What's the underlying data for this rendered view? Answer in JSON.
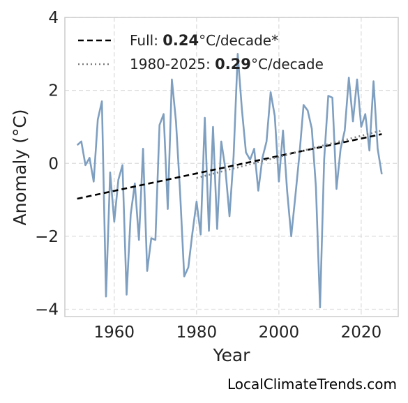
{
  "chart_data": {
    "type": "line",
    "xlabel": "Year",
    "ylabel": "Anomaly (°C)",
    "xlim": [
      1948,
      2029
    ],
    "ylim": [
      -4.2,
      4
    ],
    "xticks": [
      1960,
      1980,
      2000,
      2020
    ],
    "yticks": [
      -4,
      -2,
      0,
      2,
      4
    ],
    "ytick_labels": [
      "−4",
      "−2",
      "0",
      "2",
      "4"
    ],
    "grid": true,
    "legend_position": "top-left",
    "series": [
      {
        "type": "line",
        "color": "#7f9fc0",
        "x": [
          1951,
          1952,
          1953,
          1954,
          1955,
          1956,
          1957,
          1958,
          1959,
          1960,
          1961,
          1962,
          1963,
          1964,
          1965,
          1966,
          1967,
          1968,
          1969,
          1970,
          1971,
          1972,
          1973,
          1974,
          1975,
          1976,
          1977,
          1978,
          1979,
          1980,
          1981,
          1982,
          1983,
          1984,
          1985,
          1986,
          1987,
          1988,
          1989,
          1990,
          1991,
          1992,
          1993,
          1994,
          1995,
          1996,
          1997,
          1998,
          1999,
          2000,
          2001,
          2002,
          2003,
          2004,
          2005,
          2006,
          2007,
          2008,
          2009,
          2010,
          2011,
          2012,
          2013,
          2014,
          2015,
          2016,
          2017,
          2018,
          2019,
          2020,
          2021,
          2022,
          2023,
          2024,
          2025
        ],
        "y": [
          0.5,
          0.6,
          -0.05,
          0.15,
          -0.5,
          1.2,
          1.7,
          -3.65,
          -0.25,
          -1.6,
          -0.45,
          -0.05,
          -3.6,
          -1.4,
          -0.55,
          -2.1,
          0.4,
          -2.95,
          -2.05,
          -2.1,
          1.05,
          1.35,
          -1.25,
          2.3,
          1.15,
          -0.8,
          -3.1,
          -2.85,
          -1.9,
          -1.05,
          -1.95,
          1.25,
          -1.85,
          1.0,
          -1.8,
          0.6,
          -0.15,
          -1.45,
          0.2,
          3.0,
          1.5,
          0.3,
          0.1,
          0.4,
          -0.75,
          0.15,
          0.6,
          1.95,
          1.3,
          -0.5,
          0.9,
          -0.75,
          -2.0,
          -0.9,
          0.25,
          1.6,
          1.45,
          0.95,
          -0.65,
          -3.95,
          0.1,
          1.85,
          1.8,
          -0.7,
          0.4,
          0.9,
          2.35,
          1.15,
          2.3,
          1.0,
          1.35,
          0.35,
          2.25,
          0.4,
          -0.3
        ]
      },
      {
        "name_prefix": "Full: ",
        "rate": "0.24",
        "unit_suffix": "°C/decade*",
        "type": "trend",
        "style": "dashed",
        "color": "#000000",
        "x": [
          1951,
          2025
        ],
        "y": [
          -0.97,
          0.8
        ]
      },
      {
        "name_prefix": "1980-2025: ",
        "rate": "0.29",
        "unit_suffix": "°C/decade",
        "type": "trend",
        "style": "dotted",
        "color": "#808080",
        "x": [
          1980,
          2025
        ],
        "y": [
          -0.4,
          0.9
        ]
      }
    ]
  },
  "footer": {
    "source": "LocalClimateTrends.com"
  }
}
